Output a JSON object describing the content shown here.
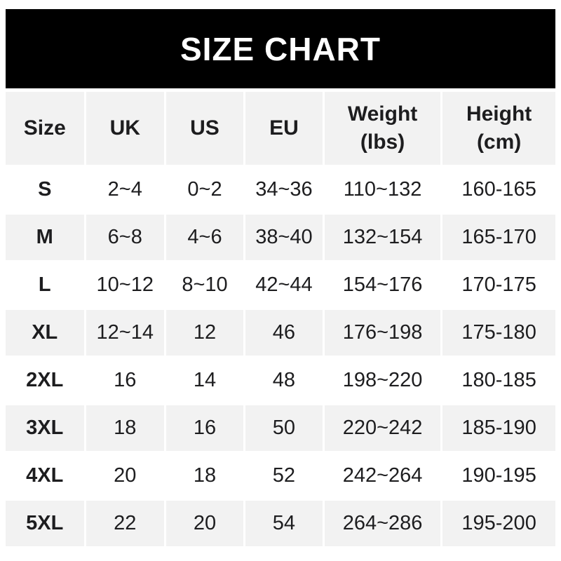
{
  "chart_data": {
    "type": "table",
    "title": "SIZE CHART",
    "columns": [
      {
        "key": "size",
        "label": "Size"
      },
      {
        "key": "uk",
        "label": "UK"
      },
      {
        "key": "us",
        "label": "US"
      },
      {
        "key": "eu",
        "label": "EU"
      },
      {
        "key": "weight",
        "label": "Weight\n(lbs)"
      },
      {
        "key": "height",
        "label": "Height\n(cm)"
      }
    ],
    "rows": [
      {
        "size": "S",
        "uk": "2~4",
        "us": "0~2",
        "eu": "34~36",
        "weight": "110~132",
        "height": "160-165"
      },
      {
        "size": "M",
        "uk": "6~8",
        "us": "4~6",
        "eu": "38~40",
        "weight": "132~154",
        "height": "165-170"
      },
      {
        "size": "L",
        "uk": "10~12",
        "us": "8~10",
        "eu": "42~44",
        "weight": "154~176",
        "height": "170-175"
      },
      {
        "size": "XL",
        "uk": "12~14",
        "us": "12",
        "eu": "46",
        "weight": "176~198",
        "height": "175-180"
      },
      {
        "size": "2XL",
        "uk": "16",
        "us": "14",
        "eu": "48",
        "weight": "198~220",
        "height": "180-185"
      },
      {
        "size": "3XL",
        "uk": "18",
        "us": "16",
        "eu": "50",
        "weight": "220~242",
        "height": "185-190"
      },
      {
        "size": "4XL",
        "uk": "20",
        "us": "18",
        "eu": "52",
        "weight": "242~264",
        "height": "190-195"
      },
      {
        "size": "5XL",
        "uk": "22",
        "us": "20",
        "eu": "54",
        "weight": "264~286",
        "height": "195-200"
      }
    ]
  },
  "colors": {
    "banner_bg": "#000000",
    "banner_text": "#ffffff",
    "cell_alt_bg": "#f2f2f2",
    "page_bg": "#ffffff",
    "text": "#1d1d1f"
  }
}
